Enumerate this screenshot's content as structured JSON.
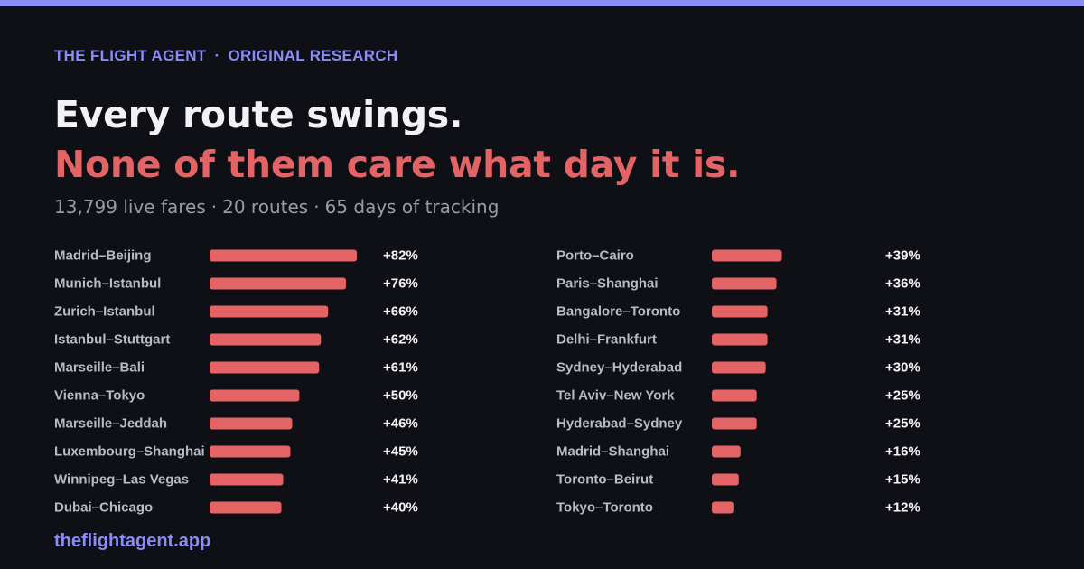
{
  "kicker": {
    "brand": "THE FLIGHT AGENT",
    "separator": "·",
    "section": "ORIGINAL RESEARCH"
  },
  "headline": {
    "line1": "Every route swings.",
    "line2": "None of them care what day it is."
  },
  "subtitle": {
    "fares": "13,799 live fares",
    "routes": "20 routes",
    "days": "65 days of tracking",
    "separator": "·"
  },
  "footer": {
    "site": "theflightagent.app"
  },
  "colors": {
    "background": "#0f1016",
    "accent": "#8b8cf5",
    "bar": "#e46466",
    "headline": "#f2f2f6",
    "label": "#b9bac4",
    "value": "#f4f4f8",
    "muted": "#9a9ba6"
  },
  "chart_data": {
    "type": "bar",
    "orientation": "horizontal",
    "columns": 2,
    "value_unit": "%",
    "categories": [
      "Madrid–Beijing",
      "Munich–Istanbul",
      "Zurich–Istanbul",
      "Istanbul–Stuttgart",
      "Marseille–Bali",
      "Vienna–Tokyo",
      "Marseille–Jeddah",
      "Luxembourg–Shanghai",
      "Winnipeg–Las Vegas",
      "Dubai–Chicago",
      "Porto–Cairo",
      "Paris–Shanghai",
      "Bangalore–Toronto",
      "Delhi–Frankfurt",
      "Sydney–Hyderabad",
      "Tel Aviv–New York",
      "Hyderabad–Sydney",
      "Madrid–Shanghai",
      "Toronto–Beirut",
      "Tokyo–Toronto"
    ],
    "values": [
      82,
      76,
      66,
      62,
      61,
      50,
      46,
      45,
      41,
      40,
      39,
      36,
      31,
      31,
      30,
      25,
      25,
      16,
      15,
      12
    ],
    "labels": [
      "+82%",
      "+76%",
      "+66%",
      "+62%",
      "+61%",
      "+50%",
      "+46%",
      "+45%",
      "+41%",
      "+40%",
      "+39%",
      "+36%",
      "+31%",
      "+31%",
      "+30%",
      "+25%",
      "+25%",
      "+16%",
      "+15%",
      "+12%"
    ],
    "grid": false,
    "legend": "none",
    "xlim": [
      0,
      82
    ]
  }
}
